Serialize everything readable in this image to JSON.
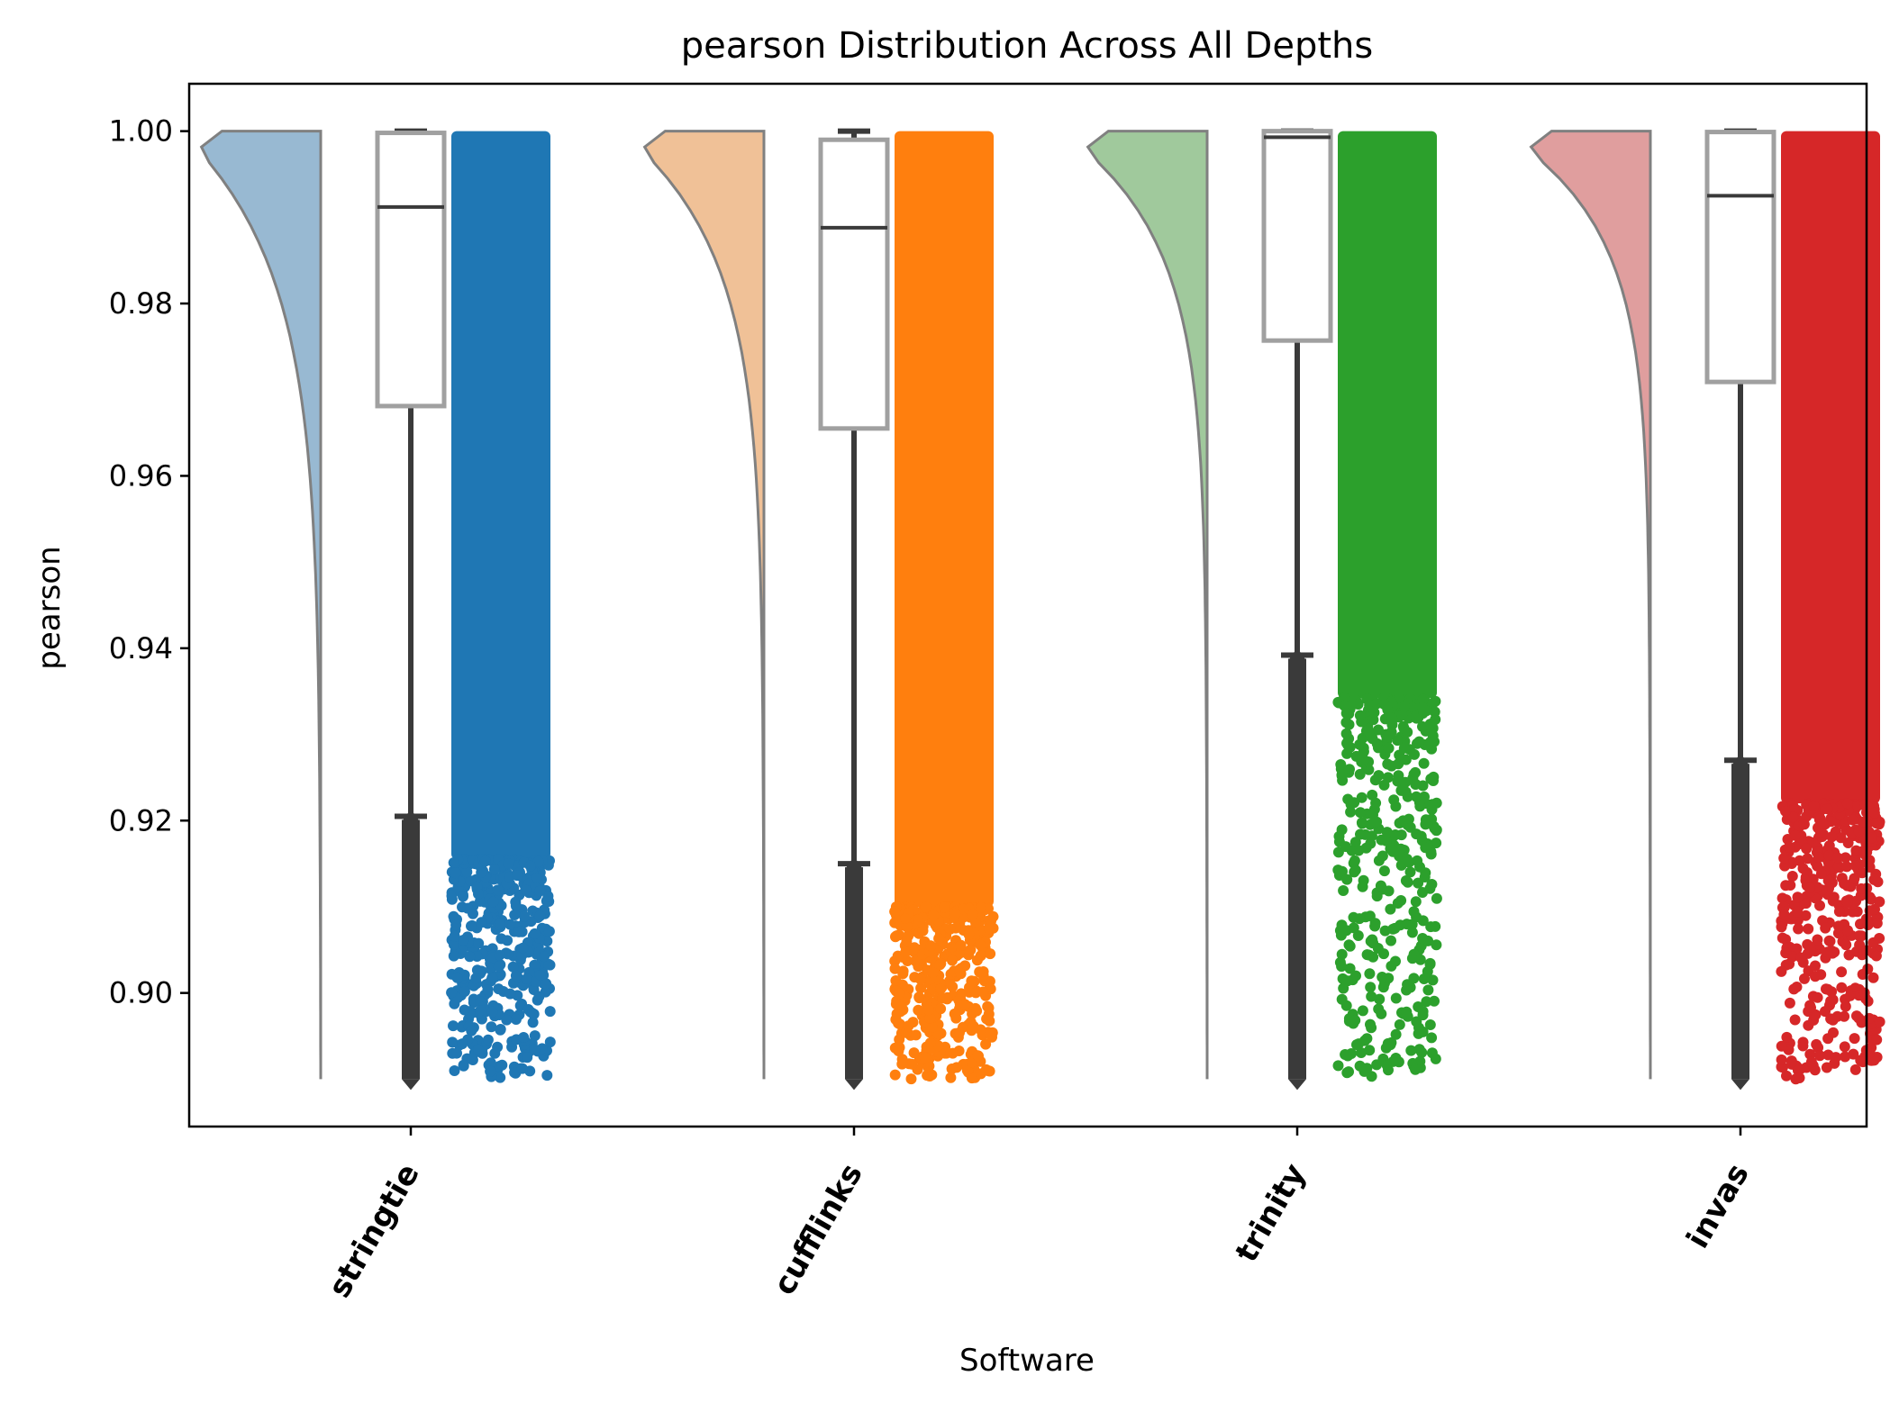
{
  "chart_data": {
    "type": "raincloud",
    "title": "pearson Distribution Across All Depths",
    "xlabel": "Software",
    "ylabel": "pearson",
    "ylim": [
      0.8845,
      1.0055
    ],
    "yticks": [
      0.9,
      0.92,
      0.94,
      0.96,
      0.98,
      1.0
    ],
    "ytick_labels": [
      "0.90",
      "0.92",
      "0.94",
      "0.96",
      "0.98",
      "1.00"
    ],
    "categories": [
      "stringtie",
      "cufflinks",
      "trinity",
      "invas"
    ],
    "grid": false,
    "legend": "none",
    "series": [
      {
        "category": "stringtie",
        "color": "#1f77b4",
        "violin_color": "#98b9d2",
        "box": {
          "whisker_low": 0.9205,
          "q1": 0.9681,
          "median": 0.9912,
          "q3": 0.9998,
          "whisker_high": 1.0
        },
        "data_min": 0.89,
        "data_max": 1.0,
        "outlier_low": 0.89
      },
      {
        "category": "cufflinks",
        "color": "#ff7f0e",
        "violin_color": "#f0c197",
        "box": {
          "whisker_low": 0.915,
          "q1": 0.9655,
          "median": 0.9888,
          "q3": 0.999,
          "whisker_high": 1.0
        },
        "data_min": 0.89,
        "data_max": 1.0,
        "outlier_low": 0.89
      },
      {
        "category": "trinity",
        "color": "#2ca02c",
        "violin_color": "#a0c99c",
        "box": {
          "whisker_low": 0.9392,
          "q1": 0.9757,
          "median": 0.9993,
          "q3": 1.0,
          "whisker_high": 1.0
        },
        "data_min": 0.89,
        "data_max": 1.0,
        "outlier_low": 0.89
      },
      {
        "category": "invas",
        "color": "#d62728",
        "violin_color": "#e09e9e",
        "box": {
          "whisker_low": 0.927,
          "q1": 0.9709,
          "median": 0.9925,
          "q3": 0.9999,
          "whisker_high": 1.0
        },
        "data_min": 0.89,
        "data_max": 1.0,
        "outlier_low": 0.89
      }
    ]
  }
}
